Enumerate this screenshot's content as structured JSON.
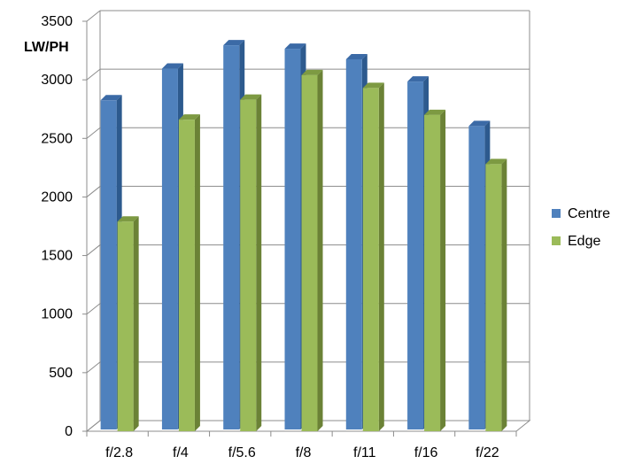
{
  "chart_data": {
    "type": "bar",
    "ylabel": "LW/PH",
    "xlabel": "",
    "title": "",
    "categories": [
      "f/2.8",
      "f/4",
      "f/5.6",
      "f/8",
      "f/11",
      "f/16",
      "f/22"
    ],
    "series": [
      {
        "name": "Centre",
        "values": [
          2810,
          3080,
          3280,
          3250,
          3160,
          2970,
          2590
        ],
        "color": "#4F81BD",
        "side_color": "#2D5A8E",
        "top_color": "#3B6AA6"
      },
      {
        "name": "Edge",
        "values": [
          1790,
          2660,
          2830,
          3040,
          2930,
          2700,
          2280
        ],
        "color": "#9BBB59",
        "side_color": "#6B8236",
        "top_color": "#7D9A42"
      }
    ],
    "ylim": [
      0,
      3500
    ],
    "yticks": [
      0,
      500,
      1000,
      1500,
      2000,
      2500,
      3000,
      3500
    ],
    "grid": true,
    "legend_position": "right",
    "gridline_color": "#8C8C8C",
    "axis_color": "#000000"
  }
}
